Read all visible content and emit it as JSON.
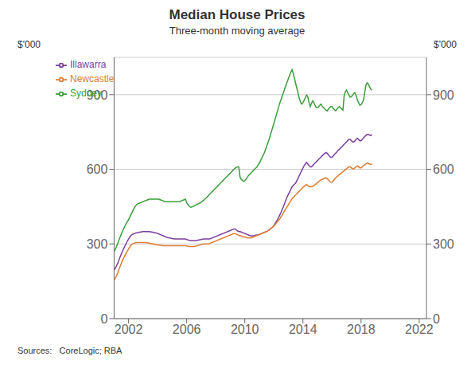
{
  "chart_data": {
    "type": "line",
    "title": "Median House Prices",
    "subtitle": "Three-month moving average",
    "ylabel": "$'000",
    "y2label": "$'000",
    "source": "Sources:   CoreLogic; RBA",
    "xlim": [
      2001.0,
      2022.5
    ],
    "xticks": [
      2002,
      2006,
      2010,
      2014,
      2018,
      2022
    ],
    "ylim": [
      0,
      1050
    ],
    "yticks": [
      0,
      300,
      600,
      900
    ],
    "y2lim": [
      0,
      1050
    ],
    "y2ticks": [
      0,
      300,
      600,
      900
    ],
    "grid": true,
    "legend": "upper left",
    "x": [
      2001,
      2001.0833333333333,
      2001.1666666666667,
      2001.25,
      2001.3333333333333,
      2001.4166666666667,
      2001.5,
      2001.5833333333333,
      2001.6666666666667,
      2001.75,
      2001.8333333333333,
      2001.9166666666667,
      2002,
      2002.0833333333333,
      2002.1666666666667,
      2002.25,
      2002.3333333333333,
      2002.4166666666667,
      2002.5,
      2002.5833333333333,
      2002.6666666666667,
      2002.75,
      2002.8333333333333,
      2002.9166666666667,
      2003,
      2003.0833333333333,
      2003.1666666666667,
      2003.25,
      2003.3333333333333,
      2003.4166666666667,
      2003.5,
      2003.5833333333333,
      2003.6666666666667,
      2003.75,
      2003.8333333333333,
      2003.9166666666667,
      2004,
      2004.0833333333333,
      2004.1666666666667,
      2004.25,
      2004.3333333333333,
      2004.4166666666667,
      2004.5,
      2004.5833333333333,
      2004.6666666666667,
      2004.75,
      2004.8333333333333,
      2004.9166666666667,
      2005,
      2005.0833333333333,
      2005.1666666666667,
      2005.25,
      2005.3333333333333,
      2005.4166666666667,
      2005.5,
      2005.5833333333333,
      2005.6666666666667,
      2005.75,
      2005.8333333333333,
      2005.9166666666667,
      2006,
      2006.0833333333333,
      2006.1666666666667,
      2006.25,
      2006.3333333333333,
      2006.4166666666667,
      2006.5,
      2006.5833333333333,
      2006.6666666666667,
      2006.75,
      2006.8333333333333,
      2006.9166666666667,
      2007,
      2007.0833333333333,
      2007.1666666666667,
      2007.25,
      2007.3333333333333,
      2007.4166666666667,
      2007.5,
      2007.5833333333333,
      2007.6666666666667,
      2007.75,
      2007.8333333333333,
      2007.9166666666667,
      2008,
      2008.0833333333333,
      2008.1666666666667,
      2008.25,
      2008.3333333333333,
      2008.4166666666667,
      2008.5,
      2008.5833333333333,
      2008.6666666666667,
      2008.75,
      2008.8333333333333,
      2008.9166666666667,
      2009,
      2009.0833333333333,
      2009.1666666666667,
      2009.25,
      2009.3333333333333,
      2009.4166666666667,
      2009.5,
      2009.5833333333333,
      2009.6666666666667,
      2009.75,
      2009.8333333333333,
      2009.9166666666667,
      2010,
      2010.0833333333333,
      2010.1666666666667,
      2010.25,
      2010.3333333333333,
      2010.4166666666667,
      2010.5,
      2010.5833333333333,
      2010.6666666666667,
      2010.75,
      2010.8333333333333,
      2010.9166666666667,
      2011,
      2011.0833333333333,
      2011.1666666666667,
      2011.25,
      2011.3333333333333,
      2011.4166666666667,
      2011.5,
      2011.5833333333333,
      2011.6666666666667,
      2011.75,
      2011.8333333333333,
      2011.9166666666667,
      2012,
      2012.0833333333333,
      2012.1666666666667,
      2012.25,
      2012.3333333333333,
      2012.4166666666667,
      2012.5,
      2012.5833333333333,
      2012.6666666666667,
      2012.75,
      2012.8333333333333,
      2012.9166666666667,
      2013,
      2013.0833333333333,
      2013.1666666666667,
      2013.25,
      2013.3333333333333,
      2013.4166666666667,
      2013.5,
      2013.5833333333333,
      2013.6666666666667,
      2013.75,
      2013.8333333333333,
      2013.9166666666667,
      2014,
      2014.0833333333333,
      2014.1666666666667,
      2014.25,
      2014.3333333333333,
      2014.4166666666667,
      2014.5,
      2014.5833333333333,
      2014.6666666666667,
      2014.75,
      2014.8333333333333,
      2014.9166666666667,
      2015,
      2015.0833333333333,
      2015.1666666666667,
      2015.25,
      2015.3333333333333,
      2015.4166666666667,
      2015.5,
      2015.5833333333333,
      2015.6666666666667,
      2015.75,
      2015.8333333333333,
      2015.9166666666667,
      2016,
      2016.0833333333333,
      2016.1666666666667,
      2016.25,
      2016.3333333333333,
      2016.4166666666667,
      2016.5,
      2016.5833333333333,
      2016.6666666666667,
      2016.75,
      2016.8333333333333,
      2016.9166666666667,
      2017,
      2017.0833333333333,
      2017.1666666666667,
      2017.25,
      2017.3333333333333,
      2017.4166666666667,
      2017.5,
      2017.5833333333333,
      2017.6666666666667,
      2017.75,
      2017.8333333333333,
      2017.9166666666667,
      2018,
      2018.0833333333333,
      2018.1666666666667,
      2018.25,
      2018.3333333333333,
      2018.4166666666667,
      2018.5,
      2018.5833333333333,
      2018.6666666666667,
      2018.75
    ],
    "series": [
      {
        "name": "Sydney",
        "color": "#3a9e3a",
        "values": [
          270,
          278,
          290,
          302,
          315,
          328,
          340,
          352,
          362,
          372,
          382,
          390,
          398,
          408,
          418,
          428,
          438,
          448,
          455,
          460,
          462,
          464,
          466,
          468,
          470,
          472,
          474,
          476,
          478,
          480,
          480,
          480,
          480,
          480,
          480,
          480,
          480,
          480,
          478,
          476,
          474,
          472,
          470,
          470,
          470,
          470,
          470,
          470,
          470,
          470,
          470,
          470,
          470,
          470,
          470,
          472,
          474,
          476,
          478,
          480,
          465,
          458,
          452,
          448,
          448,
          450,
          452,
          455,
          458,
          460,
          462,
          465,
          468,
          472,
          476,
          480,
          485,
          490,
          495,
          500,
          505,
          510,
          515,
          520,
          525,
          530,
          535,
          540,
          545,
          550,
          555,
          560,
          565,
          570,
          575,
          580,
          585,
          590,
          595,
          600,
          605,
          608,
          610,
          610,
          570,
          560,
          555,
          552,
          555,
          560,
          568,
          575,
          580,
          585,
          590,
          595,
          600,
          605,
          610,
          618,
          625,
          635,
          645,
          655,
          665,
          678,
          692,
          706,
          720,
          736,
          752,
          768,
          785,
          802,
          818,
          835,
          852,
          868,
          882,
          896,
          910,
          924,
          938,
          952,
          965,
          978,
          990,
          1000,
          985,
          965,
          945,
          925,
          905,
          885,
          870,
          862,
          868,
          878,
          888,
          898,
          892,
          868,
          852,
          865,
          875,
          868,
          858,
          848,
          848,
          852,
          858,
          862,
          852,
          848,
          842,
          838,
          835,
          842,
          848,
          852,
          852,
          845,
          840,
          835,
          842,
          848,
          852,
          848,
          842,
          838,
          895,
          912,
          918,
          908,
          898,
          890,
          892,
          898,
          905,
          908,
          895,
          878,
          868,
          858,
          860,
          868,
          878,
          908,
          938,
          948,
          942,
          932,
          922,
          918
        ]
      },
      {
        "name": "Illawarra",
        "color": "#7b3fa0",
        "values": [
          195,
          202,
          212,
          222,
          235,
          248,
          260,
          272,
          282,
          292,
          302,
          312,
          320,
          328,
          334,
          338,
          340,
          342,
          344,
          345,
          346,
          347,
          348,
          349,
          350,
          350,
          350,
          350,
          350,
          350,
          349,
          348,
          347,
          346,
          345,
          344,
          342,
          340,
          338,
          336,
          334,
          332,
          330,
          328,
          326,
          325,
          324,
          323,
          322,
          321,
          320,
          320,
          320,
          320,
          320,
          320,
          320,
          320,
          320,
          320,
          318,
          316,
          315,
          314,
          314,
          314,
          314,
          314,
          314,
          315,
          316,
          317,
          318,
          319,
          320,
          320,
          320,
          320,
          320,
          320,
          322,
          324,
          326,
          328,
          330,
          332,
          334,
          336,
          338,
          340,
          342,
          344,
          346,
          348,
          350,
          352,
          354,
          356,
          358,
          360,
          360,
          356,
          352,
          350,
          350,
          348,
          346,
          344,
          342,
          340,
          338,
          336,
          334,
          333,
          332,
          333,
          334,
          335,
          336,
          337,
          338,
          340,
          342,
          344,
          346,
          348,
          350,
          353,
          356,
          360,
          364,
          368,
          374,
          382,
          390,
          398,
          408,
          418,
          428,
          440,
          452,
          465,
          478,
          490,
          500,
          510,
          520,
          530,
          535,
          540,
          545,
          555,
          565,
          575,
          585,
          595,
          605,
          615,
          622,
          628,
          622,
          615,
          610,
          610,
          615,
          620,
          625,
          630,
          635,
          640,
          645,
          650,
          655,
          660,
          664,
          668,
          665,
          658,
          652,
          648,
          648,
          654,
          660,
          665,
          670,
          676,
          680,
          685,
          690,
          695,
          700,
          705,
          710,
          716,
          720,
          720,
          715,
          710,
          710,
          715,
          720,
          725,
          720,
          715,
          715,
          720,
          726,
          732,
          736,
          740,
          740,
          738,
          736,
          740
        ]
      },
      {
        "name": "Newcastle",
        "color": "#e07b30",
        "values": [
          155,
          162,
          172,
          184,
          197,
          210,
          222,
          234,
          244,
          254,
          264,
          272,
          280,
          288,
          295,
          300,
          302,
          304,
          305,
          306,
          306,
          306,
          306,
          306,
          306,
          306,
          306,
          305,
          304,
          303,
          302,
          301,
          300,
          299,
          298,
          297,
          296,
          295,
          295,
          294,
          294,
          293,
          293,
          293,
          293,
          293,
          293,
          293,
          293,
          293,
          293,
          293,
          293,
          293,
          293,
          293,
          293,
          293,
          293,
          293,
          292,
          291,
          290,
          290,
          290,
          290,
          290,
          291,
          292,
          293,
          295,
          296,
          298,
          299,
          300,
          300,
          300,
          300,
          300,
          302,
          304,
          306,
          308,
          310,
          312,
          314,
          316,
          318,
          320,
          322,
          324,
          326,
          328,
          330,
          332,
          334,
          336,
          338,
          340,
          342,
          342,
          339,
          337,
          334,
          334,
          332,
          330,
          329,
          328,
          326,
          325,
          324,
          324,
          325,
          326,
          328,
          330,
          332,
          334,
          336,
          338,
          340,
          342,
          344,
          346,
          348,
          350,
          353,
          356,
          360,
          364,
          368,
          372,
          378,
          384,
          390,
          396,
          402,
          410,
          418,
          426,
          434,
          442,
          450,
          458,
          466,
          474,
          482,
          487,
          492,
          497,
          502,
          507,
          512,
          517,
          522,
          527,
          532,
          536,
          539,
          535,
          532,
          530,
          530,
          532,
          535,
          538,
          542,
          546,
          550,
          554,
          558,
          560,
          562,
          564,
          566,
          563,
          558,
          552,
          548,
          548,
          554,
          560,
          566,
          570,
          574,
          578,
          582,
          586,
          590,
          594,
          598,
          602,
          607,
          610,
          610,
          606,
          602,
          602,
          606,
          610,
          614,
          610,
          606,
          606,
          610,
          615,
          618,
          622,
          625,
          624,
          622,
          620,
          622
        ]
      }
    ]
  }
}
